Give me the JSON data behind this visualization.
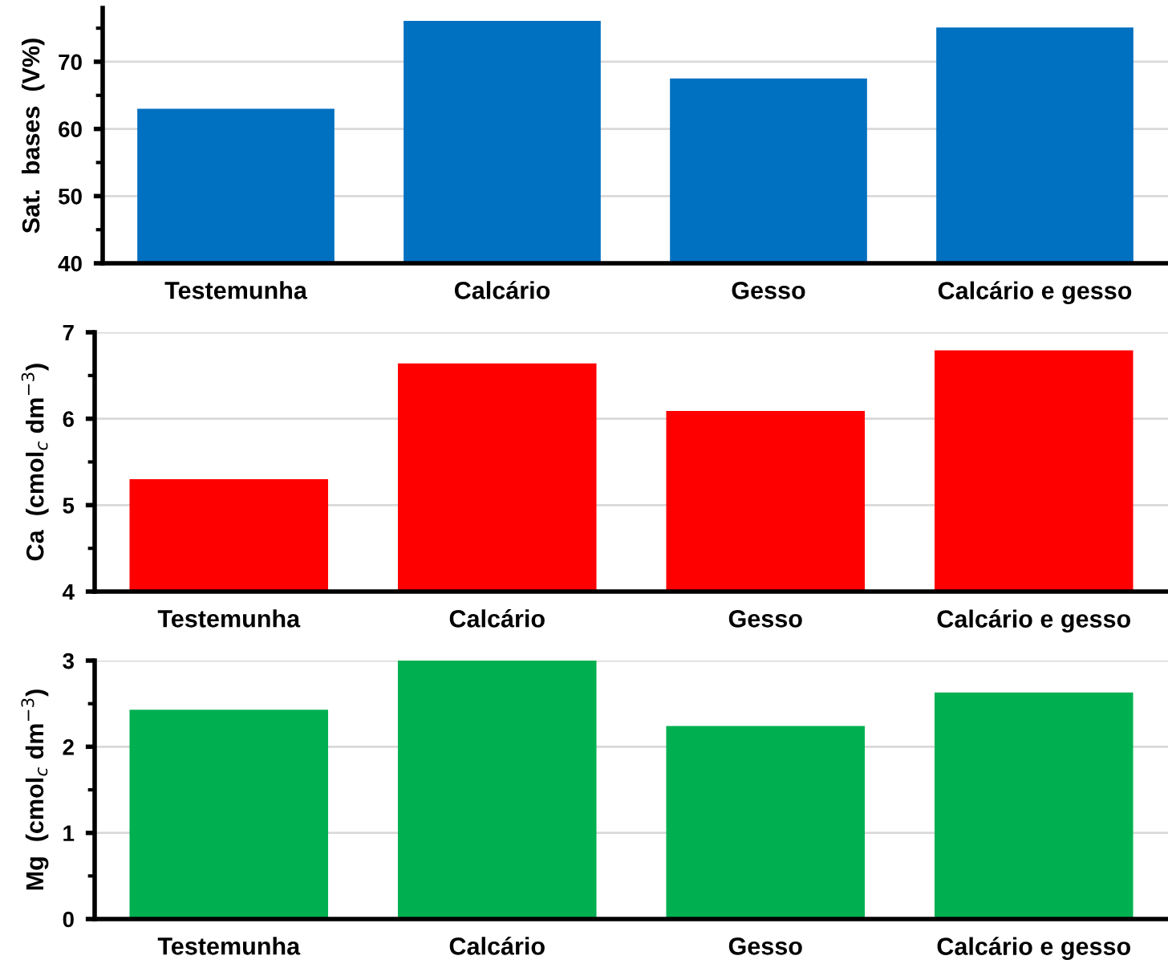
{
  "chart_data": [
    {
      "type": "bar",
      "ylabel": "Sat.  bases  (V%)",
      "categories": [
        "Testemunha",
        "Calcário",
        "Gesso",
        "Calcário e gesso"
      ],
      "values": [
        63.0,
        76.1,
        67.5,
        75.1
      ],
      "color": "#0070c0",
      "ylim": [
        40,
        78
      ],
      "yticks": [
        40,
        {
          "value": 45,
          "label": null
        },
        50,
        {
          "value": 55,
          "label": null
        },
        60,
        {
          "value": 65,
          "label": null
        },
        70,
        {
          "value": 75,
          "label": null
        }
      ],
      "grid": "y"
    },
    {
      "type": "bar",
      "ylabel": "Ca  (cmol$_{c}$ dm$^{−3}$)",
      "categories": [
        "Testemunha",
        "Calcário",
        "Gesso",
        "Calcário e gesso"
      ],
      "values": [
        5.3,
        6.64,
        6.09,
        6.79
      ],
      "color": "#ff0000",
      "ylim": [
        4,
        7
      ],
      "yticks": [
        4,
        {
          "value": 4.5,
          "label": null
        },
        5,
        {
          "value": 5.5,
          "label": null
        },
        6,
        {
          "value": 6.5,
          "label": null
        },
        7
      ],
      "grid": "y"
    },
    {
      "type": "bar",
      "ylabel": "Mg  (cmol$_{c}$ dm$^{−3}$)",
      "categories": [
        "Testemunha",
        "Calcário",
        "Gesso",
        "Calcário e gesso"
      ],
      "values": [
        2.43,
        3.0,
        2.24,
        2.63
      ],
      "color": "#00b050",
      "ylim": [
        0,
        3
      ],
      "yticks": [
        0,
        {
          "value": 0.5,
          "label": null
        },
        1,
        {
          "value": 1.5,
          "label": null
        },
        2,
        {
          "value": 2.5,
          "label": null
        },
        3
      ],
      "grid": "y"
    }
  ]
}
